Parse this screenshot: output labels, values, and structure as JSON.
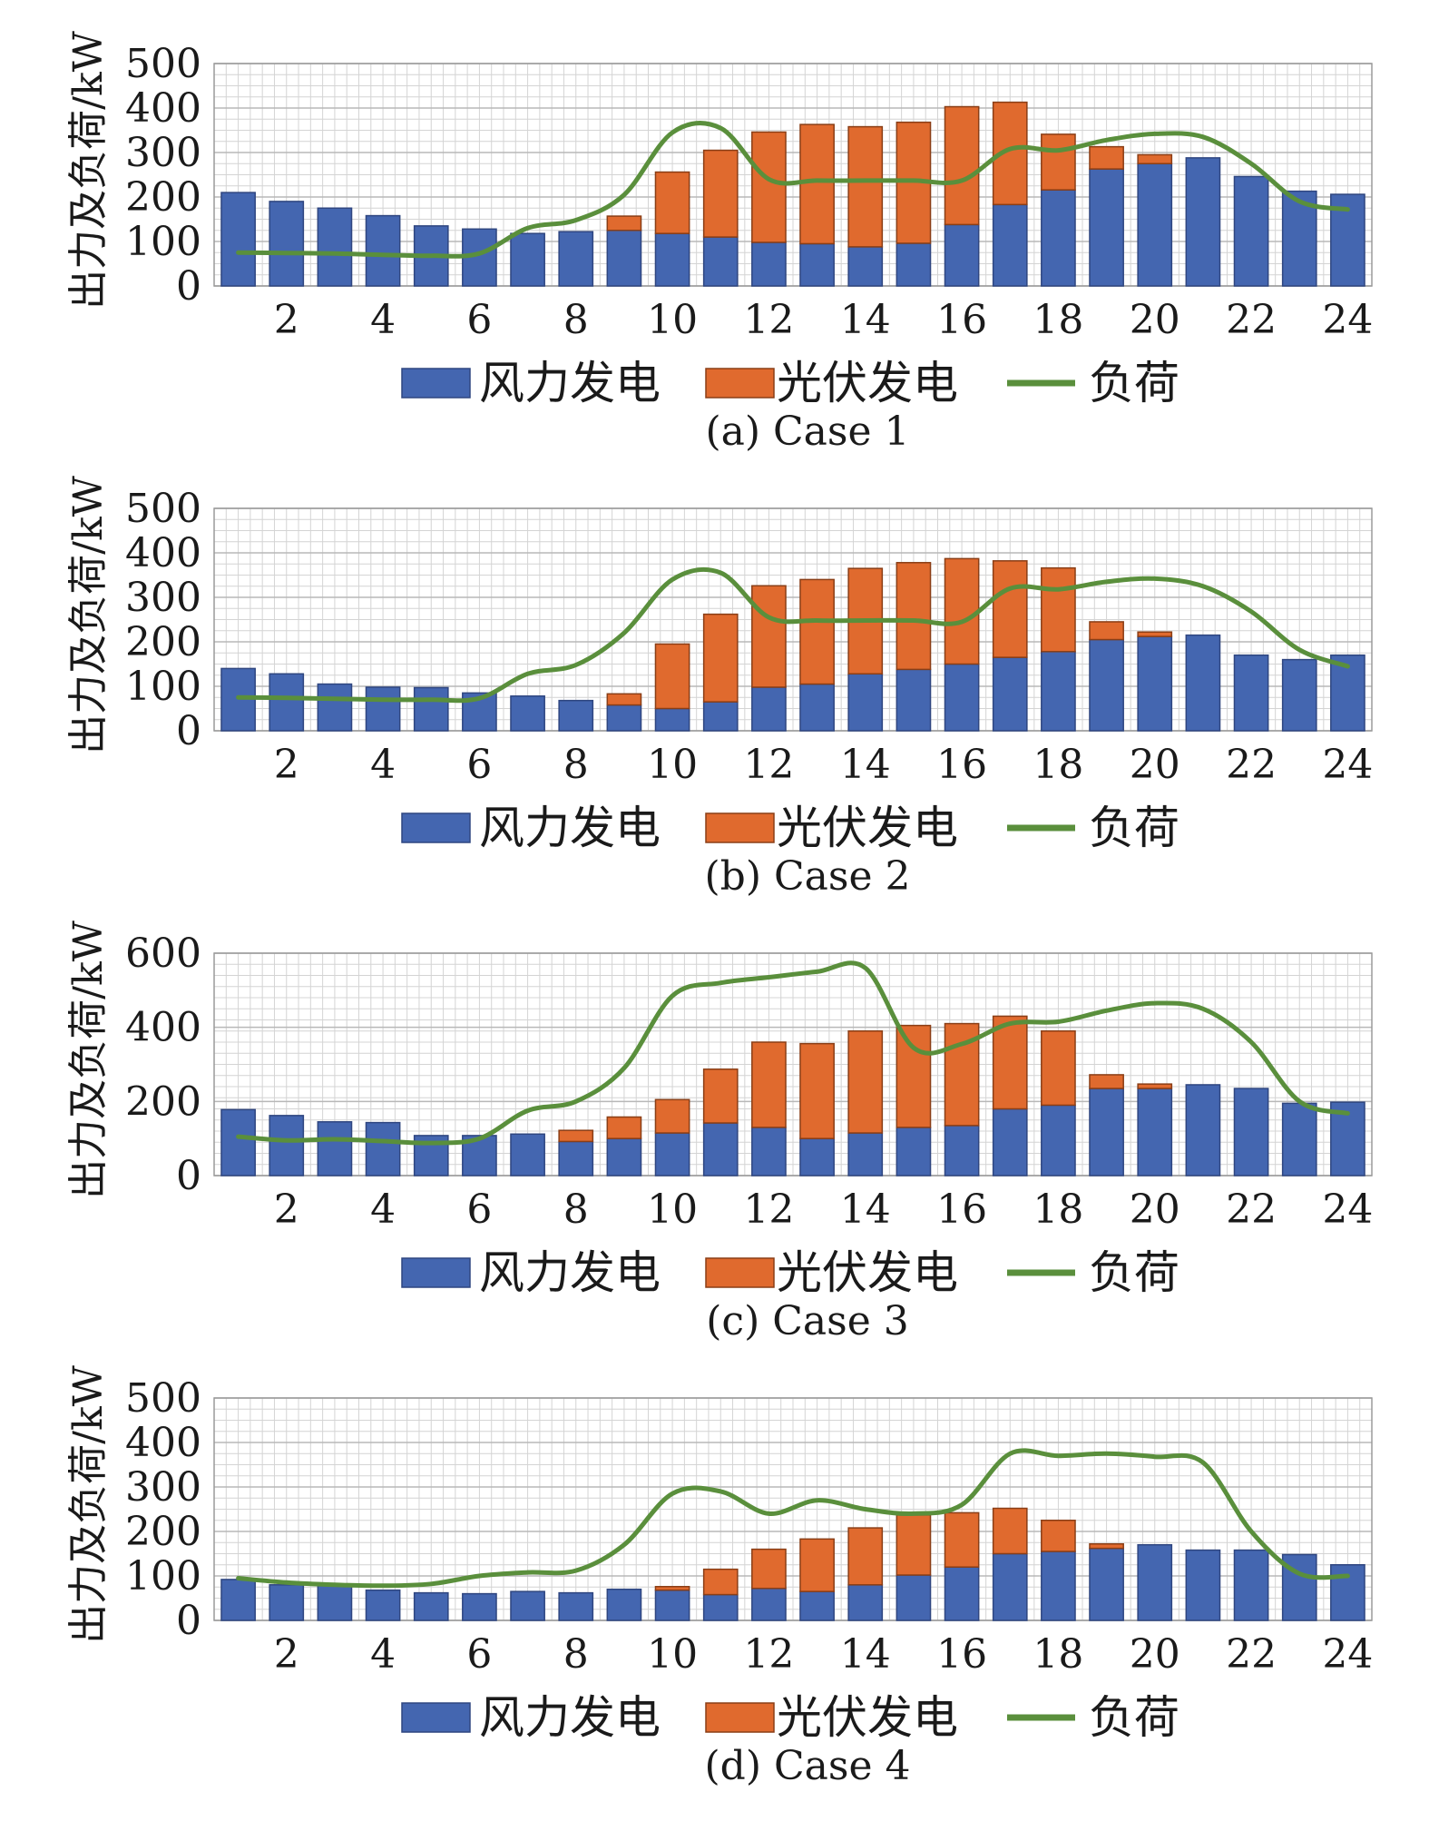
{
  "colors": {
    "wind": "#4466b0",
    "pv": "#e06a2e",
    "load": "#5a8f3c",
    "grid": "#d4d4d4",
    "axis": "#9a9a9a"
  },
  "chart_data": [
    {
      "type": "bar",
      "caption": "(a) Case 1",
      "ylabel": "出力及负荷/kW",
      "ylim": [
        0,
        500
      ],
      "yticks": [
        0,
        100,
        200,
        300,
        400,
        500
      ],
      "x": [
        1,
        2,
        3,
        4,
        5,
        6,
        7,
        8,
        9,
        10,
        11,
        12,
        13,
        14,
        15,
        16,
        17,
        18,
        19,
        20,
        21,
        22,
        23,
        24
      ],
      "xticks": [
        2,
        4,
        6,
        8,
        10,
        12,
        14,
        16,
        18,
        20,
        22,
        24
      ],
      "legend": [
        "风力发电",
        "光伏发电",
        "负荷"
      ],
      "series": [
        {
          "name": "风力发电",
          "kind": "bar",
          "values": [
            210,
            190,
            175,
            158,
            135,
            128,
            118,
            122,
            125,
            118,
            110,
            98,
            95,
            88,
            96,
            138,
            183,
            216,
            263,
            275,
            288,
            246,
            213,
            206
          ]
        },
        {
          "name": "光伏发电",
          "kind": "bar",
          "values": [
            0,
            0,
            0,
            0,
            0,
            0,
            0,
            0,
            32,
            138,
            195,
            248,
            268,
            270,
            272,
            265,
            230,
            125,
            50,
            20,
            0,
            0,
            0,
            0
          ]
        },
        {
          "name": "负荷",
          "kind": "line",
          "values": [
            75,
            74,
            73,
            70,
            68,
            73,
            130,
            148,
            205,
            345,
            355,
            240,
            237,
            237,
            237,
            237,
            308,
            305,
            328,
            342,
            335,
            275,
            190,
            172
          ]
        }
      ]
    },
    {
      "type": "bar",
      "caption": "(b) Case 2",
      "ylabel": "出力及负荷/kW",
      "ylim": [
        0,
        500
      ],
      "yticks": [
        0,
        100,
        200,
        300,
        400,
        500
      ],
      "x": [
        1,
        2,
        3,
        4,
        5,
        6,
        7,
        8,
        9,
        10,
        11,
        12,
        13,
        14,
        15,
        16,
        17,
        18,
        19,
        20,
        21,
        22,
        23,
        24
      ],
      "xticks": [
        2,
        4,
        6,
        8,
        10,
        12,
        14,
        16,
        18,
        20,
        22,
        24
      ],
      "legend": [
        "风力发电",
        "光伏发电",
        "负荷"
      ],
      "series": [
        {
          "name": "风力发电",
          "kind": "bar",
          "values": [
            140,
            128,
            105,
            98,
            97,
            85,
            78,
            68,
            58,
            50,
            65,
            98,
            105,
            128,
            138,
            150,
            165,
            178,
            205,
            212,
            215,
            170,
            160,
            170
          ]
        },
        {
          "name": "光伏发电",
          "kind": "bar",
          "values": [
            0,
            0,
            0,
            0,
            0,
            0,
            0,
            0,
            25,
            145,
            197,
            228,
            235,
            237,
            240,
            237,
            217,
            188,
            40,
            10,
            0,
            0,
            0,
            0
          ]
        },
        {
          "name": "负荷",
          "kind": "line",
          "values": [
            75,
            74,
            72,
            70,
            70,
            73,
            128,
            148,
            220,
            340,
            355,
            255,
            248,
            248,
            248,
            245,
            320,
            318,
            335,
            342,
            325,
            268,
            182,
            145
          ]
        }
      ]
    },
    {
      "type": "bar",
      "caption": "(c) Case 3",
      "ylabel": "出力及负荷/kW",
      "ylim": [
        0,
        600
      ],
      "yticks": [
        0,
        200,
        400,
        600
      ],
      "x": [
        1,
        2,
        3,
        4,
        5,
        6,
        7,
        8,
        9,
        10,
        11,
        12,
        13,
        14,
        15,
        16,
        17,
        18,
        19,
        20,
        21,
        22,
        23,
        24
      ],
      "xticks": [
        2,
        4,
        6,
        8,
        10,
        12,
        14,
        16,
        18,
        20,
        22,
        24
      ],
      "legend": [
        "风力发电",
        "光伏发电",
        "负荷"
      ],
      "series": [
        {
          "name": "风力发电",
          "kind": "bar",
          "values": [
            178,
            162,
            145,
            143,
            108,
            108,
            112,
            92,
            100,
            115,
            142,
            130,
            100,
            115,
            130,
            135,
            180,
            190,
            235,
            235,
            245,
            235,
            195,
            198
          ]
        },
        {
          "name": "光伏发电",
          "kind": "bar",
          "values": [
            0,
            0,
            0,
            0,
            0,
            0,
            0,
            30,
            58,
            90,
            145,
            230,
            256,
            275,
            275,
            275,
            250,
            200,
            37,
            12,
            0,
            0,
            0,
            0
          ]
        },
        {
          "name": "负荷",
          "kind": "line",
          "values": [
            105,
            95,
            98,
            93,
            88,
            100,
            175,
            200,
            290,
            485,
            520,
            535,
            550,
            560,
            345,
            355,
            410,
            415,
            445,
            465,
            450,
            360,
            200,
            168
          ]
        }
      ]
    },
    {
      "type": "bar",
      "caption": "(d) Case 4",
      "ylabel": "出力及负荷/kW",
      "ylim": [
        0,
        500
      ],
      "yticks": [
        0,
        100,
        200,
        300,
        400,
        500
      ],
      "x": [
        1,
        2,
        3,
        4,
        5,
        6,
        7,
        8,
        9,
        10,
        11,
        12,
        13,
        14,
        15,
        16,
        17,
        18,
        19,
        20,
        21,
        22,
        23,
        24
      ],
      "xticks": [
        2,
        4,
        6,
        8,
        10,
        12,
        14,
        16,
        18,
        20,
        22,
        24
      ],
      "legend": [
        "风力发电",
        "光伏发电",
        "负荷"
      ],
      "series": [
        {
          "name": "风力发电",
          "kind": "bar",
          "values": [
            92,
            80,
            78,
            68,
            62,
            60,
            65,
            62,
            70,
            68,
            58,
            72,
            65,
            80,
            102,
            120,
            150,
            155,
            162,
            170,
            158,
            158,
            148,
            125
          ]
        },
        {
          "name": "光伏发电",
          "kind": "bar",
          "values": [
            0,
            0,
            0,
            0,
            0,
            0,
            0,
            0,
            0,
            8,
            57,
            88,
            118,
            128,
            135,
            122,
            102,
            70,
            10,
            0,
            0,
            0,
            0,
            0
          ]
        },
        {
          "name": "负荷",
          "kind": "line",
          "values": [
            95,
            85,
            80,
            78,
            82,
            100,
            108,
            112,
            170,
            285,
            290,
            240,
            270,
            250,
            240,
            260,
            375,
            370,
            375,
            368,
            355,
            200,
            105,
            100
          ]
        }
      ]
    }
  ]
}
